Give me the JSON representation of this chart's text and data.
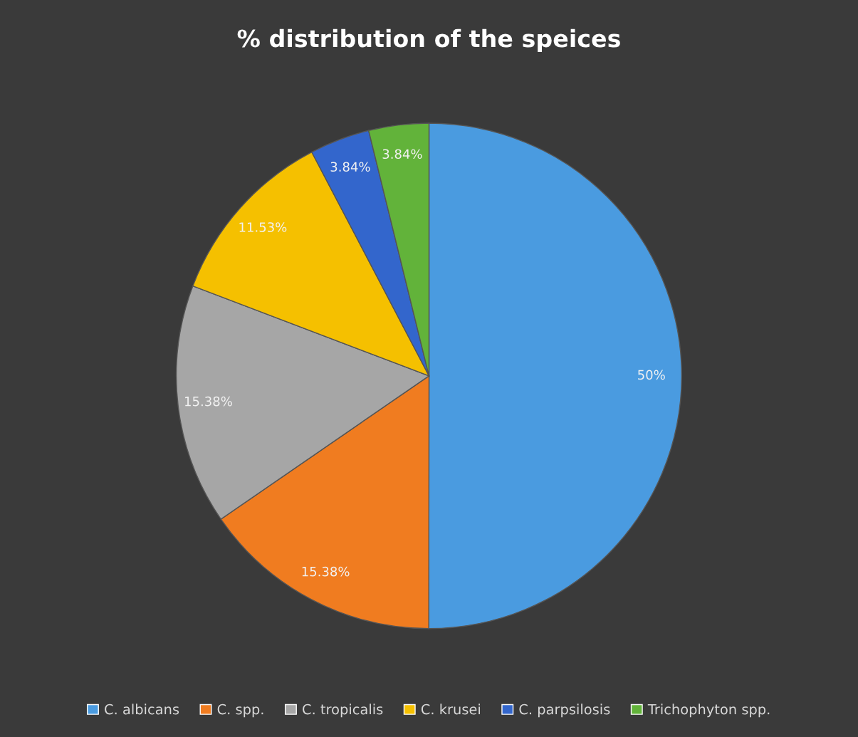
{
  "chart_data": {
    "type": "pie",
    "title": "% distribution of the speices",
    "categories": [
      "C. albicans",
      "C. spp.",
      "C. tropicalis",
      "C. krusei",
      "C. parpsilosis",
      "Trichophyton spp."
    ],
    "values": [
      50,
      15.38,
      15.38,
      11.53,
      3.84,
      3.84
    ],
    "colors": [
      "#4a9be0",
      "#f07c20",
      "#a6a6a6",
      "#f5c000",
      "#3366cc",
      "#62b33a"
    ],
    "value_labels": [
      "50%",
      "15.38%",
      "15.38%",
      "11.53%",
      "3.84%",
      "3.84%"
    ],
    "legend": "bottom"
  }
}
